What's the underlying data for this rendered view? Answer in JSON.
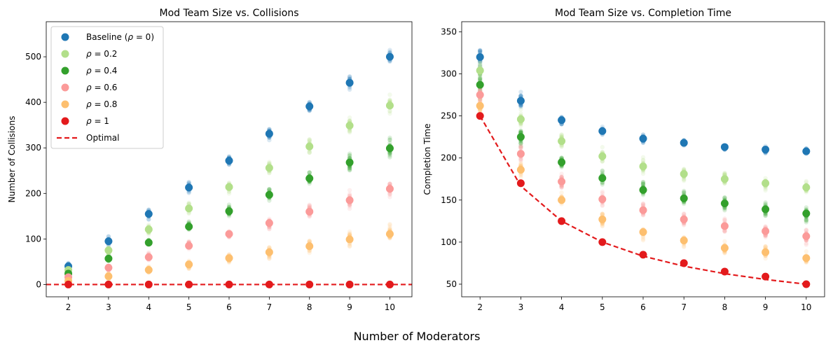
{
  "figure": {
    "supxlabel": "Number of Moderators"
  },
  "chart_data": [
    {
      "type": "scatter",
      "title": "Mod Team Size vs. Collisions",
      "xlabel": "",
      "ylabel": "Number of Collisions",
      "x": [
        2,
        3,
        4,
        5,
        6,
        7,
        8,
        9,
        10
      ],
      "xlim": [
        1.45,
        10.55
      ],
      "ylim": [
        -27,
        577
      ],
      "yticks": [
        0,
        100,
        200,
        300,
        400,
        500
      ],
      "legend_position": "upper-left",
      "series": [
        {
          "name": "Baseline (ρ = 0)",
          "color": "#1f77b4",
          "values": [
            40,
            95,
            155,
            213,
            272,
            331,
            391,
            443,
            500
          ],
          "spread": [
            12,
            13,
            14,
            15,
            16,
            17,
            18,
            20,
            22
          ]
        },
        {
          "name": "ρ = 0.2",
          "color": "#b2df8a",
          "values": [
            32,
            75,
            121,
            167,
            214,
            256,
            303,
            349,
            393
          ],
          "spread": [
            10,
            12,
            13,
            16,
            18,
            20,
            25,
            28,
            30
          ]
        },
        {
          "name": "ρ = 0.4",
          "color": "#33a02c",
          "values": [
            24,
            57,
            92,
            127,
            161,
            197,
            233,
            268,
            299
          ],
          "spread": [
            10,
            10,
            12,
            14,
            18,
            20,
            22,
            25,
            30
          ]
        },
        {
          "name": "ρ = 0.6",
          "color": "#fb9a99",
          "values": [
            16,
            37,
            60,
            85,
            111,
            135,
            160,
            185,
            210
          ],
          "spread": [
            10,
            10,
            12,
            14,
            16,
            18,
            22,
            24,
            28
          ]
        },
        {
          "name": "ρ = 0.8",
          "color": "#fdbf6f",
          "values": [
            8,
            18,
            32,
            44,
            58,
            71,
            84,
            99,
            111
          ],
          "spread": [
            8,
            10,
            12,
            14,
            16,
            18,
            20,
            22,
            25
          ]
        },
        {
          "name": "ρ = 1",
          "color": "#e31a1c",
          "values": [
            0,
            0,
            0,
            0,
            0,
            0,
            0,
            0,
            0
          ],
          "spread": [
            0,
            0,
            0,
            0,
            0,
            0,
            0,
            0,
            0
          ]
        }
      ],
      "optimal": {
        "name": "Optimal",
        "color": "#e31a1c",
        "values": [
          0,
          0,
          0,
          0,
          0,
          0,
          0,
          0,
          0
        ],
        "extend": true
      }
    },
    {
      "type": "scatter",
      "title": "Mod Team Size vs. Completion Time",
      "xlabel": "",
      "ylabel": "Completion Time",
      "x": [
        2,
        3,
        4,
        5,
        6,
        7,
        8,
        9,
        10
      ],
      "xlim": [
        1.55,
        10.45
      ],
      "ylim": [
        35,
        362
      ],
      "yticks": [
        50,
        100,
        150,
        200,
        250,
        300,
        350
      ],
      "series": [
        {
          "name": "Baseline (ρ = 0)",
          "color": "#1f77b4",
          "values": [
            320,
            268,
            245,
            232,
            223,
            218,
            213,
            210,
            208
          ],
          "spread": [
            18,
            12,
            10,
            8,
            7,
            6,
            6,
            6,
            6
          ]
        },
        {
          "name": "ρ = 0.2",
          "color": "#b2df8a",
          "values": [
            304,
            246,
            220,
            202,
            190,
            181,
            175,
            170,
            165
          ],
          "spread": [
            18,
            15,
            12,
            12,
            12,
            12,
            12,
            10,
            10
          ]
        },
        {
          "name": "ρ = 0.4",
          "color": "#33a02c",
          "values": [
            287,
            225,
            195,
            176,
            162,
            152,
            146,
            139,
            134
          ],
          "spread": [
            18,
            15,
            14,
            12,
            12,
            12,
            12,
            12,
            12
          ]
        },
        {
          "name": "ρ = 0.6",
          "color": "#fb9a99",
          "values": [
            275,
            205,
            172,
            151,
            138,
            127,
            119,
            113,
            107
          ],
          "spread": [
            15,
            15,
            14,
            12,
            12,
            12,
            12,
            12,
            12
          ]
        },
        {
          "name": "ρ = 0.8",
          "color": "#fdbf6f",
          "values": [
            262,
            186,
            150,
            127,
            112,
            102,
            93,
            88,
            81
          ],
          "spread": [
            12,
            12,
            12,
            12,
            12,
            10,
            10,
            10,
            10
          ]
        },
        {
          "name": "ρ = 1",
          "color": "#e31a1c",
          "values": [
            250,
            170,
            125,
            100,
            85,
            75,
            65,
            59,
            50
          ],
          "spread": [
            0,
            0,
            0,
            0,
            0,
            0,
            0,
            0,
            0
          ]
        }
      ],
      "optimal": {
        "name": "Optimal",
        "color": "#e31a1c",
        "values": [
          250,
          166.7,
          125,
          100,
          83.3,
          71.4,
          62.5,
          55.6,
          50
        ],
        "extend": false
      }
    }
  ]
}
